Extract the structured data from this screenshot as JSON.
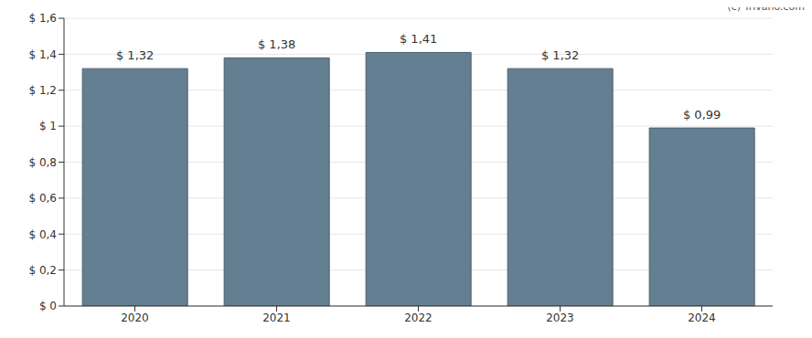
{
  "chart_data": {
    "type": "bar",
    "categories": [
      "2020",
      "2021",
      "2022",
      "2023",
      "2024"
    ],
    "values": [
      1.32,
      1.38,
      1.41,
      1.32,
      0.99
    ],
    "value_labels": [
      "$ 1,32",
      "$ 1,38",
      "$ 1,41",
      "$ 1,32",
      "$ 0,99"
    ],
    "data_labels": true,
    "color": "#647f91",
    "ylim": [
      0,
      1.6
    ],
    "yticks": [
      {
        "value": 0,
        "label": "$ 0"
      },
      {
        "value": 0.2,
        "label": "$ 0,2"
      },
      {
        "value": 0.4,
        "label": "$ 0,4"
      },
      {
        "value": 0.6,
        "label": "$ 0,6"
      },
      {
        "value": 0.8,
        "label": "$ 0,8"
      },
      {
        "value": 1,
        "label": "$ 1"
      },
      {
        "value": 1.2,
        "label": "$ 1,2"
      },
      {
        "value": 1.4,
        "label": "$ 1,4"
      },
      {
        "value": 1.6,
        "label": "$ 1,6"
      }
    ],
    "grid": true,
    "annotations": [
      "(c) Trivano.com"
    ]
  }
}
